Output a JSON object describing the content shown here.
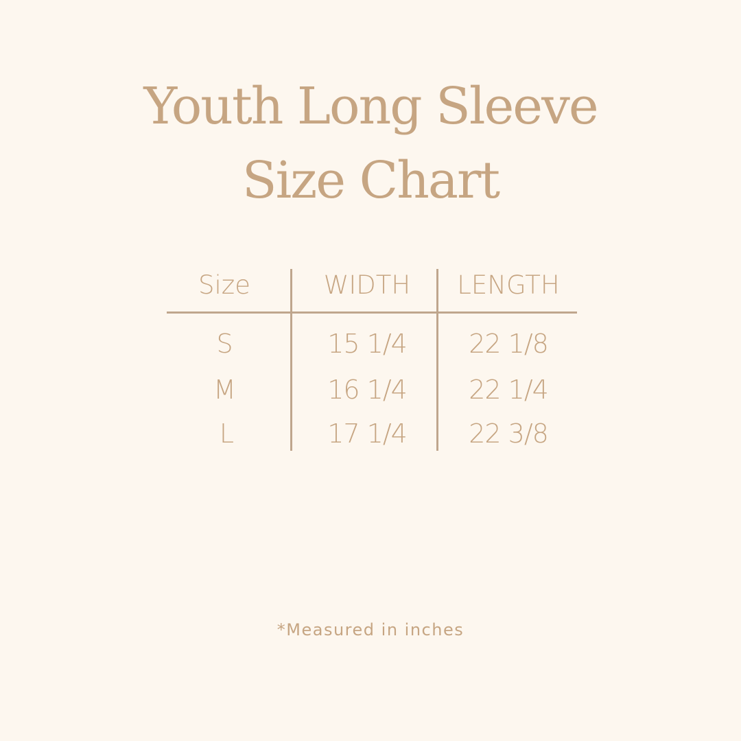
{
  "title": {
    "line1": "Youth Long Sleeve",
    "line2": "Size Chart"
  },
  "table": {
    "headers": [
      "Size",
      "WIDTH",
      "LENGTH"
    ],
    "rows": [
      [
        "S",
        "15 1/4",
        "22 1/8"
      ],
      [
        "M",
        "16 1/4",
        "22 1/4"
      ],
      [
        "L",
        "17 1/4",
        "22 3/8"
      ]
    ]
  },
  "footnote": "*Measured in inches",
  "colors": {
    "background": "#fdf7ef",
    "text": "#c6a582",
    "lines": "#bfa68d"
  }
}
